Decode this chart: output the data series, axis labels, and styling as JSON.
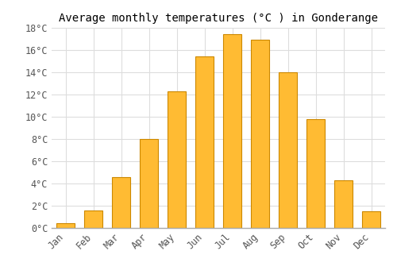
{
  "title": "Average monthly temperatures (°C ) in Gonderange",
  "months": [
    "Jan",
    "Feb",
    "Mar",
    "Apr",
    "May",
    "Jun",
    "Jul",
    "Aug",
    "Sep",
    "Oct",
    "Nov",
    "Dec"
  ],
  "values": [
    0.4,
    1.6,
    4.6,
    8.0,
    12.3,
    15.4,
    17.4,
    16.9,
    14.0,
    9.8,
    4.3,
    1.5
  ],
  "bar_color": "#FFBB33",
  "bar_edge_color": "#CC8800",
  "ylim": [
    0,
    18
  ],
  "yticks": [
    0,
    2,
    4,
    6,
    8,
    10,
    12,
    14,
    16,
    18
  ],
  "ytick_labels": [
    "0°C",
    "2°C",
    "4°C",
    "6°C",
    "8°C",
    "10°C",
    "12°C",
    "14°C",
    "16°C",
    "18°C"
  ],
  "background_color": "#ffffff",
  "grid_color": "#dddddd",
  "title_fontsize": 10,
  "tick_fontsize": 8.5,
  "font_family": "monospace",
  "bar_width": 0.65
}
